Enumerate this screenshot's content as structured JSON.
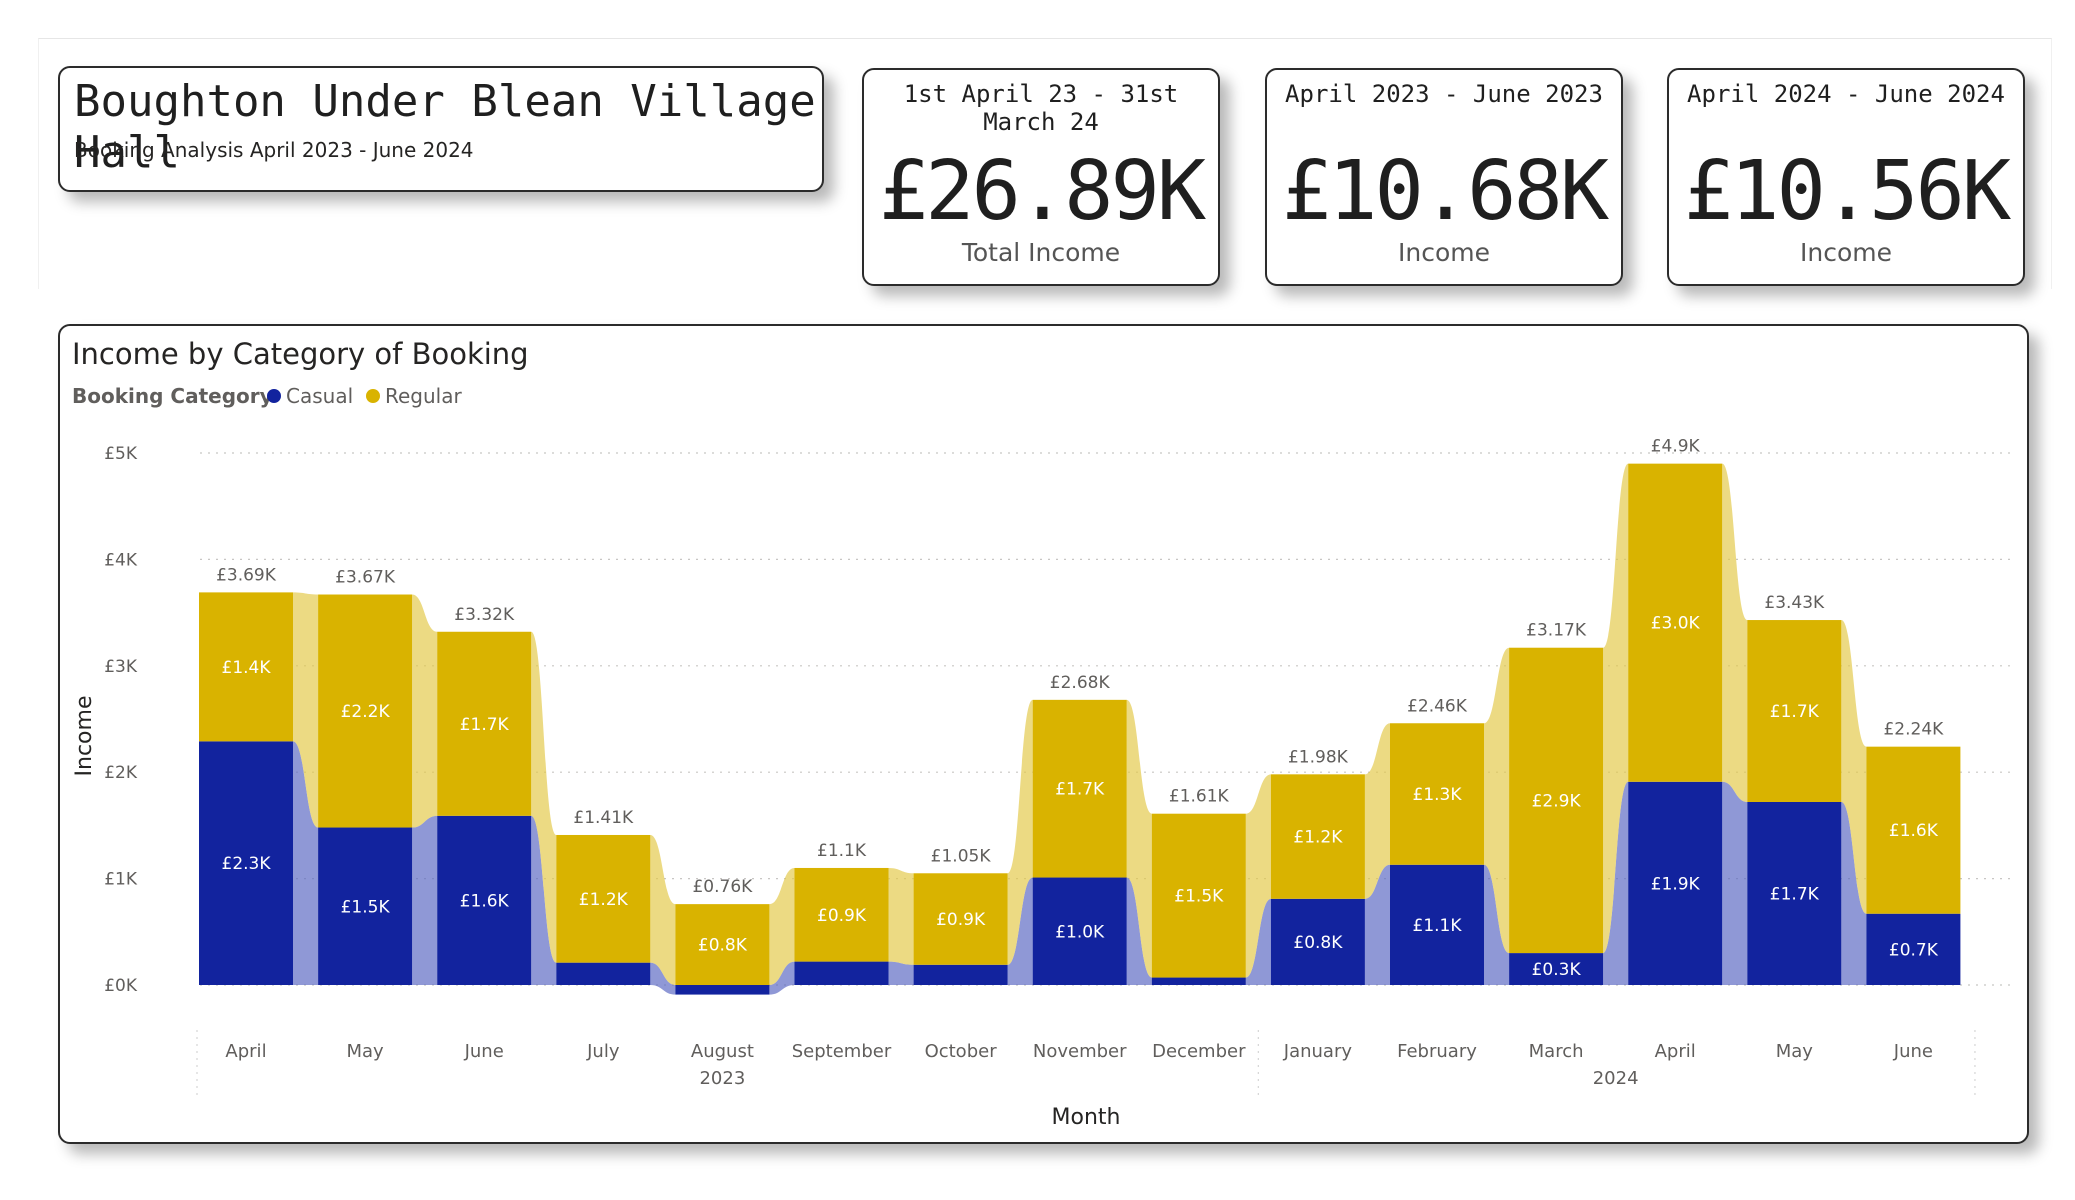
{
  "header": {
    "title": "Boughton Under Blean Village Hall",
    "subtitle": "Booking Analysis April 2023 - June 2024"
  },
  "kpis": [
    {
      "period": "1st April 23 - 31st March 24",
      "value": "£26.89K",
      "label": "Total Income"
    },
    {
      "period": "April 2023 - June 2023",
      "value": "£10.68K",
      "label": "Income"
    },
    {
      "period": "April 2024 - June 2024",
      "value": "£10.56K",
      "label": "Income"
    }
  ],
  "chart_data": {
    "type": "bar",
    "title": "Income by Category of Booking",
    "legend": {
      "title": "Booking Category",
      "placement": "top-left"
    },
    "xlabel": "Month",
    "ylabel": "Income",
    "ylim": [
      0,
      5000
    ],
    "yticks": [
      0,
      1000,
      2000,
      3000,
      4000,
      5000
    ],
    "ytick_labels": [
      "£0K",
      "£1K",
      "£2K",
      "£3K",
      "£4K",
      "£5K"
    ],
    "grid": true,
    "categories": [
      "April",
      "May",
      "June",
      "July",
      "August",
      "September",
      "October",
      "November",
      "December",
      "January",
      "February",
      "March",
      "April",
      "May",
      "June"
    ],
    "year_groups": [
      {
        "label": "2023",
        "start": 0,
        "end": 8
      },
      {
        "label": "2024",
        "start": 9,
        "end": 14
      }
    ],
    "series": [
      {
        "name": "Casual",
        "color": "#12239e",
        "values": [
          2290,
          1480,
          1590,
          210,
          -90,
          220,
          190,
          1010,
          70,
          810,
          1130,
          300,
          1910,
          1720,
          670
        ],
        "labels": [
          "£2.3K",
          "£1.5K",
          "£1.6K",
          "",
          "",
          "",
          "",
          "£1.0K",
          "",
          "£0.8K",
          "£1.1K",
          "£0.3K",
          "£1.9K",
          "£1.7K",
          "£0.7K"
        ]
      },
      {
        "name": "Regular",
        "color": "#d9b300",
        "values": [
          1400,
          2190,
          1730,
          1200,
          850,
          880,
          860,
          1670,
          1540,
          1170,
          1330,
          2870,
          2990,
          1710,
          1570
        ],
        "labels": [
          "£1.4K",
          "£2.2K",
          "£1.7K",
          "£1.2K",
          "£0.8K",
          "£0.9K",
          "£0.9K",
          "£1.7K",
          "£1.5K",
          "£1.2K",
          "£1.3K",
          "£2.9K",
          "£3.0K",
          "£1.7K",
          "£1.6K"
        ]
      }
    ],
    "totals": [
      3690,
      3670,
      3320,
      1410,
      760,
      1100,
      1050,
      2680,
      1610,
      1980,
      2460,
      3170,
      4900,
      3430,
      2240
    ],
    "total_labels": [
      "£3.69K",
      "£3.67K",
      "£3.32K",
      "£1.41K",
      "£0.76K",
      "£1.1K",
      "£1.05K",
      "£2.68K",
      "£1.61K",
      "£1.98K",
      "£2.46K",
      "£3.17K",
      "£4.9K",
      "£3.43K",
      "£2.24K"
    ]
  }
}
